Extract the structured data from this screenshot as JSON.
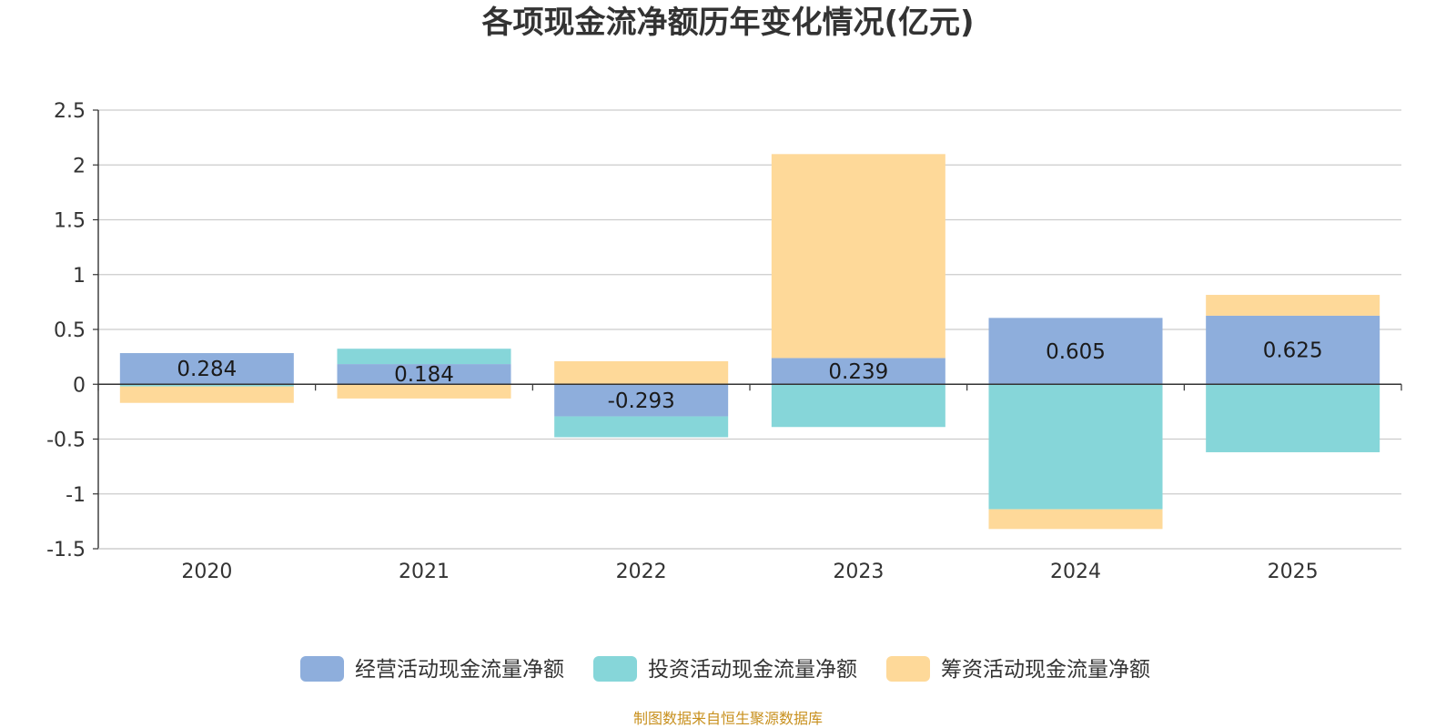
{
  "chart_data": {
    "type": "bar",
    "stacked": true,
    "title": "各项现金流净额历年变化情况(亿元)",
    "categories": [
      "2020",
      "2021",
      "2022",
      "2023",
      "2024",
      "2025"
    ],
    "ylim": [
      -1.5,
      2.5
    ],
    "yticks": [
      "2.5",
      "2",
      "1.5",
      "1",
      "0.5",
      "0",
      "-0.5",
      "-1",
      "-1.5"
    ],
    "ytick_values": [
      2.5,
      2,
      1.5,
      1,
      0.5,
      0,
      -0.5,
      -1,
      -1.5
    ],
    "series": [
      {
        "name": "经营活动现金流量净额",
        "color": "#8eaedc",
        "values": [
          0.284,
          0.184,
          -0.293,
          0.239,
          0.605,
          0.625
        ]
      },
      {
        "name": "投资活动现金流量净额",
        "color": "#86d6d9",
        "values": [
          -0.02,
          0.14,
          -0.19,
          -0.39,
          -1.14,
          -0.62
        ]
      },
      {
        "name": "筹资活动现金流量净额",
        "color": "#fed999",
        "values": [
          -0.15,
          -0.13,
          0.21,
          1.86,
          -0.18,
          0.19
        ]
      }
    ],
    "data_labels": [
      "0.284",
      "0.184",
      "-0.293",
      "0.239",
      "0.605",
      "0.625"
    ],
    "legend_position": "bottom",
    "grid": true
  },
  "source_text": "制图数据来自恒生聚源数据库"
}
